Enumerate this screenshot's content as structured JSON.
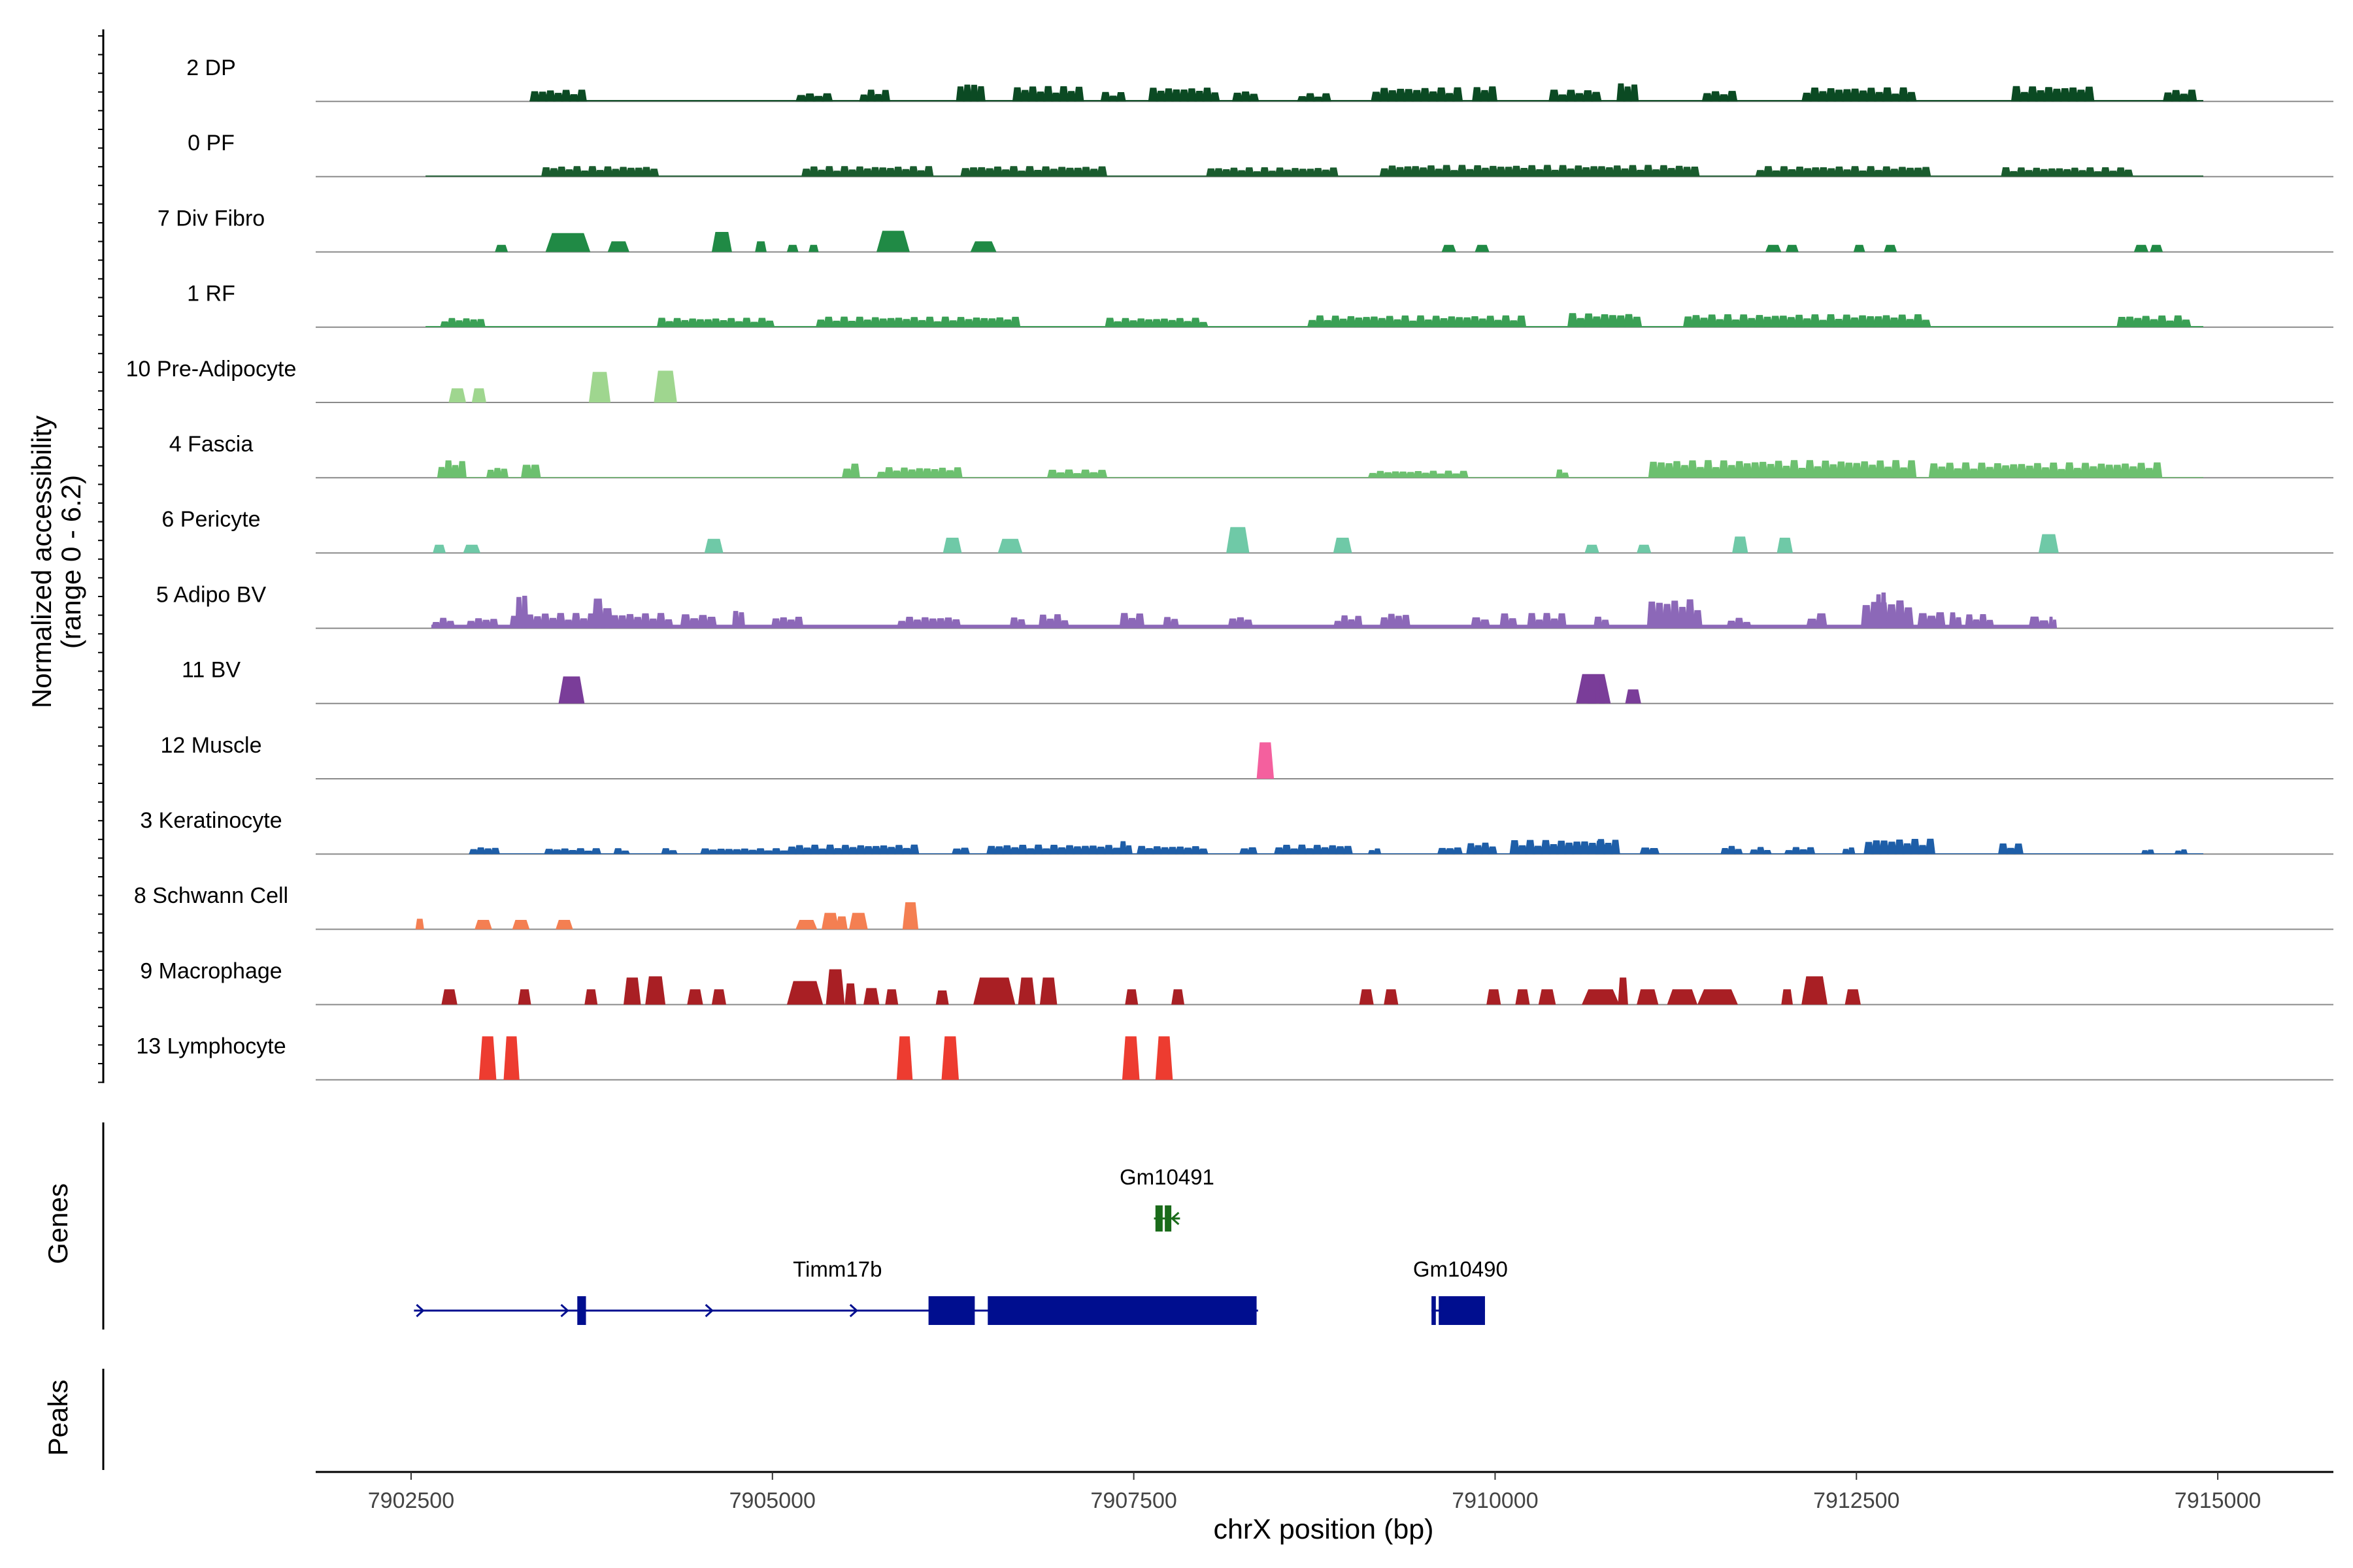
{
  "chart_data": {
    "type": "area",
    "title": "",
    "xlabel": "chrX position (bp)",
    "ylabel_line1": "Normalized accessibility",
    "ylabel_line2": "(range 0 - 6.2)",
    "ylim": [
      0,
      6.2
    ],
    "xlim": [
      7901840,
      7915800
    ],
    "x_ticks": [
      7902500,
      7905000,
      7907500,
      7910000,
      7912500,
      7915000
    ],
    "x_tick_labels": [
      "7902500",
      "7905000",
      "7907500",
      "7910000",
      "7912500",
      "7915000"
    ],
    "genes_label": "Genes",
    "peaks_label": "Peaks",
    "tracks": [
      {
        "name": "2 DP",
        "color": "#0b4a23",
        "style": "continuous",
        "level": 0.35,
        "start": 7903320,
        "end": 7914900,
        "segments": [
          [
            7903320,
            7903700,
            1
          ],
          [
            7905160,
            7905400,
            0.7
          ],
          [
            7905600,
            7905800,
            1
          ],
          [
            7906270,
            7906460,
            1.6
          ],
          [
            7906660,
            7907140,
            1.3
          ],
          [
            7907270,
            7907430,
            0.8
          ],
          [
            7907600,
            7908080,
            1.2
          ],
          [
            7908180,
            7908350,
            0.9
          ],
          [
            7908630,
            7908850,
            0.7
          ],
          [
            7909140,
            7909760,
            1.2
          ],
          [
            7909840,
            7910000,
            1.3
          ],
          [
            7910370,
            7910720,
            1
          ],
          [
            7910840,
            7910980,
            1.6
          ],
          [
            7911430,
            7911660,
            0.9
          ],
          [
            7912120,
            7912900,
            1.2
          ],
          [
            7913570,
            7914130,
            1.3
          ],
          [
            7914620,
            7914840,
            1
          ]
        ]
      },
      {
        "name": "0 PF",
        "color": "#1a5c2e",
        "style": "continuous",
        "level": 0.3,
        "start": 7902600,
        "end": 7914900,
        "segments": [
          [
            7903400,
            7904200,
            0.9
          ],
          [
            7905200,
            7906100,
            0.9
          ],
          [
            7906300,
            7907300,
            0.9
          ],
          [
            7908000,
            7908900,
            0.8
          ],
          [
            7909200,
            7911400,
            1
          ],
          [
            7911800,
            7913000,
            0.9
          ],
          [
            7913500,
            7914400,
            0.8
          ]
        ]
      },
      {
        "name": "7 Div Fibro",
        "color": "#208a45",
        "style": "peaks",
        "peaks": [
          [
            7903080,
            7903170,
            0.6
          ],
          [
            7903430,
            7903740,
            1.6
          ],
          [
            7903860,
            7904010,
            0.9
          ],
          [
            7904580,
            7904720,
            1.7
          ],
          [
            7904880,
            7904960,
            0.9
          ],
          [
            7905100,
            7905180,
            0.6
          ],
          [
            7905250,
            7905320,
            0.6
          ],
          [
            7905720,
            7905950,
            1.8
          ],
          [
            7906370,
            7906550,
            0.9
          ],
          [
            7909630,
            7909730,
            0.6
          ],
          [
            7909860,
            7909960,
            0.6
          ],
          [
            7911870,
            7911980,
            0.6
          ],
          [
            7912010,
            7912100,
            0.6
          ],
          [
            7912480,
            7912560,
            0.6
          ],
          [
            7912690,
            7912780,
            0.6
          ],
          [
            7914420,
            7914520,
            0.6
          ],
          [
            7914530,
            7914620,
            0.6
          ]
        ]
      },
      {
        "name": "1 RF",
        "color": "#3aa055",
        "style": "continuous",
        "level": 0.3,
        "start": 7902600,
        "end": 7914900,
        "segments": [
          [
            7902700,
            7903000,
            0.8
          ],
          [
            7904200,
            7905000,
            0.8
          ],
          [
            7905300,
            7906700,
            0.9
          ],
          [
            7907300,
            7908000,
            0.8
          ],
          [
            7908700,
            7910200,
            1
          ],
          [
            7910500,
            7911000,
            1.2
          ],
          [
            7911300,
            7913000,
            1.1
          ],
          [
            7914300,
            7914800,
            1
          ]
        ]
      },
      {
        "name": "10 Pre-Adipocyte",
        "color": "#9fd68f",
        "style": "peaks",
        "peaks": [
          [
            7902760,
            7902880,
            1.2
          ],
          [
            7902920,
            7903020,
            1.2
          ],
          [
            7903730,
            7903880,
            2.6
          ],
          [
            7904180,
            7904340,
            2.7
          ]
        ]
      },
      {
        "name": "4 Fascia",
        "color": "#6cc06f",
        "style": "continuous",
        "level": 0.2,
        "start": 7902680,
        "end": 7914900,
        "segments": [
          [
            7902680,
            7902870,
            1.5
          ],
          [
            7903020,
            7903160,
            0.9
          ],
          [
            7903260,
            7903380,
            1.3
          ],
          [
            7905480,
            7905590,
            1.2
          ],
          [
            7905720,
            7906300,
            0.9
          ],
          [
            7906900,
            7907300,
            0.7
          ],
          [
            7909120,
            7909800,
            0.6
          ],
          [
            7910420,
            7910500,
            0.7
          ],
          [
            7911060,
            7912900,
            1.5
          ],
          [
            7913000,
            7914600,
            1.3
          ]
        ]
      },
      {
        "name": "6 Pericyte",
        "color": "#6fc9a7",
        "style": "peaks",
        "peaks": [
          [
            7902650,
            7902740,
            0.7
          ],
          [
            7902860,
            7902980,
            0.7
          ],
          [
            7904530,
            7904660,
            1.2
          ],
          [
            7906180,
            7906310,
            1.3
          ],
          [
            7906560,
            7906730,
            1.2
          ],
          [
            7908140,
            7908300,
            2.2
          ],
          [
            7908880,
            7909010,
            1.3
          ],
          [
            7910620,
            7910720,
            0.7
          ],
          [
            7910980,
            7911080,
            0.7
          ],
          [
            7911640,
            7911750,
            1.4
          ],
          [
            7911950,
            7912060,
            1.3
          ],
          [
            7913760,
            7913900,
            1.6
          ]
        ]
      },
      {
        "name": "5 Adipo BV",
        "color": "#8c68b8",
        "style": "continuous",
        "level": 0.9,
        "start": 7902640,
        "end": 7913880,
        "segments": [
          [
            7902640,
            7902790,
            0.9
          ],
          [
            7902880,
            7903090,
            0.9
          ],
          [
            7903180,
            7904300,
            1.3
          ],
          [
            7903220,
            7903300,
            3.2
          ],
          [
            7903750,
            7903880,
            2.6
          ],
          [
            7904360,
            7904600,
            1.2
          ],
          [
            7904720,
            7904800,
            1.6
          ],
          [
            7904990,
            7905200,
            1
          ],
          [
            7905860,
            7906290,
            1
          ],
          [
            7906640,
            7906740,
            1
          ],
          [
            7906840,
            7907040,
            1.2
          ],
          [
            7907400,
            7907560,
            1.3
          ],
          [
            7907700,
            7907800,
            1
          ],
          [
            7908150,
            7908310,
            1
          ],
          [
            7908880,
            7909070,
            1.1
          ],
          [
            7909200,
            7909400,
            1.3
          ],
          [
            7909830,
            7909950,
            1
          ],
          [
            7910030,
            7910140,
            1.3
          ],
          [
            7910220,
            7910480,
            1.3
          ],
          [
            7910680,
            7910780,
            1
          ],
          [
            7911050,
            7911420,
            2.5
          ],
          [
            7911600,
            7911760,
            0.9
          ],
          [
            7912150,
            7912280,
            1.3
          ],
          [
            7912530,
            7912880,
            2.5
          ],
          [
            7912630,
            7912700,
            3.5
          ],
          [
            7912920,
            7913100,
            1.4
          ],
          [
            7913140,
            7913220,
            1.4
          ],
          [
            7913250,
            7913440,
            1.2
          ],
          [
            7913690,
            7913820,
            1
          ],
          [
            7913830,
            7913880,
            1
          ]
        ]
      },
      {
        "name": "11 BV",
        "color": "#7a3d99",
        "style": "peaks",
        "peaks": [
          [
            7903520,
            7903700,
            2.3
          ],
          [
            7910560,
            7910800,
            2.5
          ],
          [
            7910640,
            7910700,
            2.2
          ],
          [
            7910720,
            7910760,
            2.4
          ],
          [
            7910900,
            7911010,
            1.2
          ]
        ]
      },
      {
        "name": "12 Muscle",
        "color": "#f4609e",
        "style": "peaks",
        "peaks": [
          [
            7908350,
            7908470,
            3.1
          ]
        ]
      },
      {
        "name": "3 Keratinocyte",
        "color": "#1e5ea8",
        "style": "continuous",
        "level": 0.2,
        "start": 7902900,
        "end": 7914900,
        "segments": [
          [
            7902900,
            7903100,
            0.6
          ],
          [
            7903420,
            7903800,
            0.5
          ],
          [
            7903900,
            7904000,
            0.5
          ],
          [
            7904230,
            7904330,
            0.5
          ],
          [
            7904500,
            7905100,
            0.5
          ],
          [
            7905100,
            7906000,
            0.8
          ],
          [
            7906240,
            7906350,
            0.6
          ],
          [
            7906480,
            7907400,
            0.8
          ],
          [
            7907400,
            7907480,
            1.1
          ],
          [
            7907520,
            7908000,
            0.7
          ],
          [
            7908230,
            7908340,
            0.6
          ],
          [
            7908470,
            7909000,
            0.8
          ],
          [
            7909120,
            7909200,
            0.5
          ],
          [
            7909600,
            7909760,
            0.6
          ],
          [
            7909800,
            7910000,
            1
          ],
          [
            7910100,
            7910800,
            1.2
          ],
          [
            7910700,
            7910850,
            1.3
          ],
          [
            7911000,
            7911120,
            0.6
          ],
          [
            7911560,
            7911700,
            0.7
          ],
          [
            7911760,
            7911900,
            0.6
          ],
          [
            7912000,
            7912200,
            0.6
          ],
          [
            7912400,
            7912480,
            0.6
          ],
          [
            7912550,
            7913030,
            1.3
          ],
          [
            7913480,
            7913640,
            0.9
          ],
          [
            7914470,
            7914550,
            0.4
          ],
          [
            7914700,
            7914780,
            0.4
          ]
        ]
      },
      {
        "name": "8 Schwann Cell",
        "color": "#f47f52",
        "style": "peaks",
        "peaks": [
          [
            7902530,
            7902590,
            0.9
          ],
          [
            7902940,
            7903060,
            0.8
          ],
          [
            7903200,
            7903320,
            0.8
          ],
          [
            7903500,
            7903620,
            0.8
          ],
          [
            7905160,
            7905310,
            0.8
          ],
          [
            7905340,
            7905460,
            1.4
          ],
          [
            7905440,
            7905520,
            1.1
          ],
          [
            7905530,
            7905660,
            1.4
          ],
          [
            7905900,
            7906010,
            2.3
          ]
        ]
      },
      {
        "name": "9 Macrophage",
        "color": "#a91f24",
        "style": "peaks",
        "peaks": [
          [
            7902710,
            7902820,
            1.3
          ],
          [
            7903240,
            7903330,
            1.3
          ],
          [
            7903700,
            7903790,
            1.3
          ],
          [
            7903970,
            7904090,
            2.3
          ],
          [
            7904120,
            7904260,
            2.4
          ],
          [
            7904410,
            7904520,
            1.3
          ],
          [
            7904580,
            7904680,
            1.3
          ],
          [
            7905100,
            7905350,
            2
          ],
          [
            7905370,
            7905500,
            3
          ],
          [
            7905500,
            7905580,
            1.8
          ],
          [
            7905630,
            7905740,
            1.4
          ],
          [
            7905780,
            7905870,
            1.3
          ],
          [
            7906130,
            7906220,
            1.2
          ],
          [
            7906390,
            7906680,
            2.3
          ],
          [
            7906700,
            7906820,
            2.3
          ],
          [
            7906850,
            7906970,
            2.3
          ],
          [
            7907440,
            7907530,
            1.3
          ],
          [
            7907760,
            7907850,
            1.3
          ],
          [
            7909060,
            7909160,
            1.3
          ],
          [
            7909230,
            7909330,
            1.3
          ],
          [
            7909940,
            7910040,
            1.3
          ],
          [
            7910140,
            7910240,
            1.3
          ],
          [
            7910300,
            7910420,
            1.3
          ],
          [
            7910600,
            7910860,
            1.3
          ],
          [
            7910850,
            7910920,
            2.3
          ],
          [
            7910980,
            7911130,
            1.3
          ],
          [
            7911190,
            7911400,
            1.3
          ],
          [
            7911400,
            7911680,
            1.3
          ],
          [
            7911980,
            7912060,
            1.3
          ],
          [
            7912120,
            7912300,
            2.4
          ],
          [
            7912420,
            7912530,
            1.3
          ]
        ]
      },
      {
        "name": "13 Lymphocyte",
        "color": "#ed3c30",
        "style": "peaks",
        "peaks": [
          [
            7902970,
            7903090,
            3.7
          ],
          [
            7903140,
            7903250,
            3.7
          ],
          [
            7905860,
            7905970,
            3.7
          ],
          [
            7906170,
            7906290,
            3.7
          ],
          [
            7907420,
            7907540,
            3.7
          ],
          [
            7907650,
            7907770,
            3.7
          ]
        ]
      }
    ],
    "genes": [
      {
        "name": "Gm10491",
        "color": "#1a6b1a",
        "row": 0,
        "start": 7907640,
        "end": 7907820,
        "exons": [
          [
            7907650,
            7907700
          ],
          [
            7907715,
            7907760
          ]
        ],
        "strand": "-"
      },
      {
        "name": "Timm17b",
        "color": "#000e8f",
        "row": 1,
        "start": 7902520,
        "end": 7908360,
        "exons": [
          [
            7903650,
            7903710
          ],
          [
            7906080,
            7906400
          ],
          [
            7906490,
            7908350
          ]
        ],
        "strand": "+",
        "label_pos": 7905450
      },
      {
        "name": "Gm10490",
        "color": "#000e8f",
        "row": 1,
        "start": 7909560,
        "end": 7909930,
        "exons": [
          [
            7909560,
            7909590
          ],
          [
            7909610,
            7909930
          ]
        ],
        "strand": "+",
        "label_pos": 7909760
      }
    ]
  }
}
